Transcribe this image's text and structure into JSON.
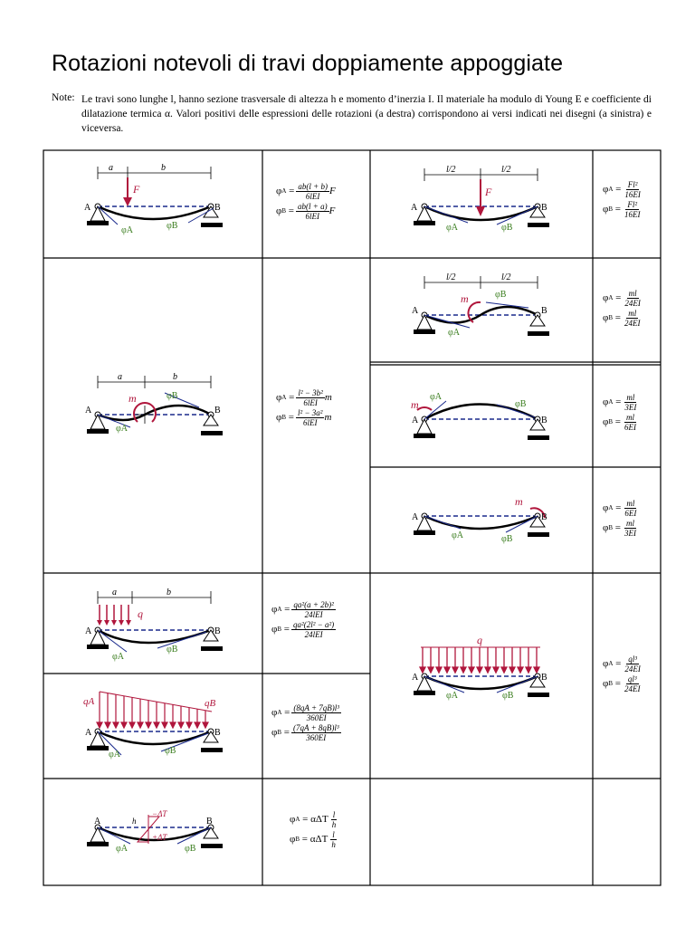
{
  "title": "Rotazioni notevoli di travi doppiamente appoggiate",
  "note_label": "Note:",
  "note_text": "Le travi sono lunghe l, hanno sezione trasversale di altezza h e momento d’inerzia I. Il materiale ha modulo di Young E e coefficiente di dilatazione termica α. Valori positivi delle espressioni delle rotazioni (a destra) corrispondono ai versi indicati nei disegni (a sinistra) e viceversa.",
  "labels": {
    "A": "A",
    "B": "B",
    "F": "F",
    "m": "m",
    "q": "q",
    "a": "a",
    "b": "b",
    "half": "l/2",
    "h": "h",
    "phiA": "φA",
    "phiB": "φB",
    "qA": "qA",
    "qB": "qB",
    "dTm": "−ΔT",
    "dTp": "+ΔT"
  },
  "formulas": {
    "c1": {
      "A_num": "ab(l + b)",
      "A_den": "6lEI",
      "A_tail": "F",
      "B_num": "ab(l + a)",
      "B_den": "6lEI",
      "B_tail": "F"
    },
    "c2": {
      "A_num": "Fl²",
      "A_den": "16EI",
      "B_num": "Fl²",
      "B_den": "16EI"
    },
    "c3": {
      "A_num": "l² − 3b²",
      "A_den": "6lEI",
      "A_tail": "m",
      "B_num": "l² − 3a²",
      "B_den": "6lEI",
      "B_tail": "m"
    },
    "c4": {
      "A_num": "ml",
      "A_den": "24EI",
      "B_num": "ml",
      "B_den": "24EI"
    },
    "c5": {
      "A_num": "ml",
      "A_den": "3EI",
      "B_num": "ml",
      "B_den": "6EI"
    },
    "c6": {
      "A_num": "ml",
      "A_den": "6EI",
      "B_num": "ml",
      "B_den": "3EI"
    },
    "c7": {
      "A_num": "qa²(a + 2b)²",
      "A_den": "24lEI",
      "B_num": "qa²(2l² − a²)",
      "B_den": "24lEI"
    },
    "c8": {
      "A_num": "ql³",
      "A_den": "24EI",
      "B_num": "ql³",
      "B_den": "24EI"
    },
    "c9": {
      "A_num": "(8qA + 7qB)l³",
      "A_den": "360EI",
      "B_num": "(7qA + 8qB)l³",
      "B_den": "360EI"
    },
    "c10": {
      "A_pre": "αΔT",
      "A_num": "l",
      "A_den": "h",
      "B_pre": "αΔT",
      "B_num": "l",
      "B_den": "h"
    }
  },
  "phi_A": "φ",
  "sub_A": "A",
  "sub_B": "B",
  "eq": "="
}
